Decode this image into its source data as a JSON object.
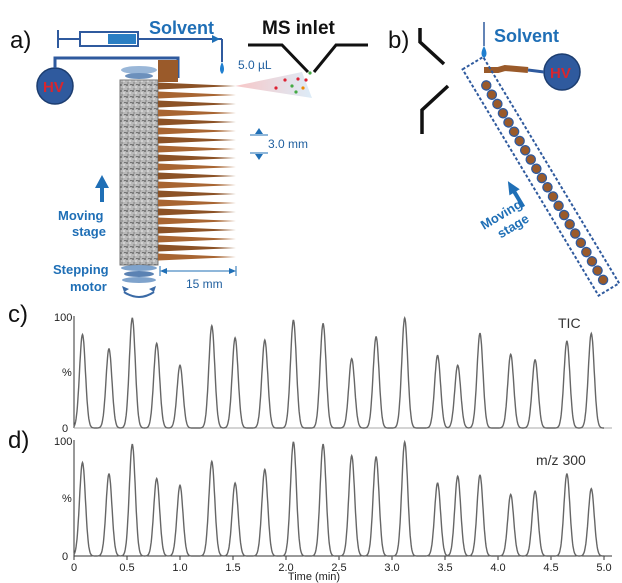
{
  "panel_a": {
    "label": "a)",
    "hv": "HV",
    "solvent": "Solvent",
    "ms_inlet": "MS inlet",
    "volume": "5.0 µL",
    "spacing": "3.0 mm",
    "width": "15 mm",
    "moving_stage": [
      "Moving",
      "stage"
    ],
    "stepping_motor": [
      "Stepping",
      "motor"
    ]
  },
  "panel_b": {
    "label": "b)",
    "solvent": "Solvent",
    "hv": "HV",
    "moving_stage": [
      "Moving",
      "stage"
    ]
  },
  "panel_c": {
    "label": "c)",
    "trace_label": "TIC"
  },
  "panel_d": {
    "label": "d)",
    "trace_label": "m/z 300"
  },
  "colors": {
    "accent_blue": "#1f6fb6",
    "hv_fill": "#2f5a9e",
    "hv_text": "#d8262e",
    "copper": "#9a5a2a",
    "trace": "#666666"
  },
  "chart_data": [
    {
      "type": "line",
      "title": "TIC",
      "xlabel": "",
      "ylabel": "%",
      "xlim": [
        0,
        5.0
      ],
      "ylim": [
        0,
        100
      ],
      "y_ticks": [
        "100",
        "%",
        "0"
      ],
      "peaks": [
        {
          "x": 0.08,
          "y": 85
        },
        {
          "x": 0.33,
          "y": 72
        },
        {
          "x": 0.55,
          "y": 100
        },
        {
          "x": 0.78,
          "y": 77
        },
        {
          "x": 1.0,
          "y": 57
        },
        {
          "x": 1.3,
          "y": 93
        },
        {
          "x": 1.52,
          "y": 82
        },
        {
          "x": 1.8,
          "y": 80
        },
        {
          "x": 2.07,
          "y": 98
        },
        {
          "x": 2.35,
          "y": 95
        },
        {
          "x": 2.62,
          "y": 63
        },
        {
          "x": 2.85,
          "y": 83
        },
        {
          "x": 3.12,
          "y": 100
        },
        {
          "x": 3.43,
          "y": 66
        },
        {
          "x": 3.62,
          "y": 57
        },
        {
          "x": 3.83,
          "y": 86
        },
        {
          "x": 4.12,
          "y": 67
        },
        {
          "x": 4.35,
          "y": 62
        },
        {
          "x": 4.65,
          "y": 79
        },
        {
          "x": 4.88,
          "y": 86
        }
      ]
    },
    {
      "type": "line",
      "title": "m/z 300",
      "xlabel": "Time (min)",
      "ylabel": "%",
      "xlim": [
        0,
        5.0
      ],
      "ylim": [
        0,
        100
      ],
      "y_ticks": [
        "100",
        "%",
        "0"
      ],
      "x_ticks": [
        "0",
        "0.5",
        "1.0",
        "1.5",
        "2.0",
        "2.5",
        "3.0",
        "3.5",
        "4.0",
        "4.5",
        "5.0"
      ],
      "peaks": [
        {
          "x": 0.08,
          "y": 82
        },
        {
          "x": 0.33,
          "y": 72
        },
        {
          "x": 0.55,
          "y": 98
        },
        {
          "x": 0.78,
          "y": 68
        },
        {
          "x": 1.0,
          "y": 62
        },
        {
          "x": 1.3,
          "y": 83
        },
        {
          "x": 1.52,
          "y": 64
        },
        {
          "x": 1.8,
          "y": 76
        },
        {
          "x": 2.07,
          "y": 100
        },
        {
          "x": 2.35,
          "y": 98
        },
        {
          "x": 2.62,
          "y": 88
        },
        {
          "x": 2.85,
          "y": 87
        },
        {
          "x": 3.12,
          "y": 100
        },
        {
          "x": 3.43,
          "y": 64
        },
        {
          "x": 3.62,
          "y": 70
        },
        {
          "x": 3.83,
          "y": 71
        },
        {
          "x": 4.12,
          "y": 54
        },
        {
          "x": 4.35,
          "y": 57
        },
        {
          "x": 4.65,
          "y": 72
        },
        {
          "x": 4.88,
          "y": 59
        }
      ]
    }
  ]
}
